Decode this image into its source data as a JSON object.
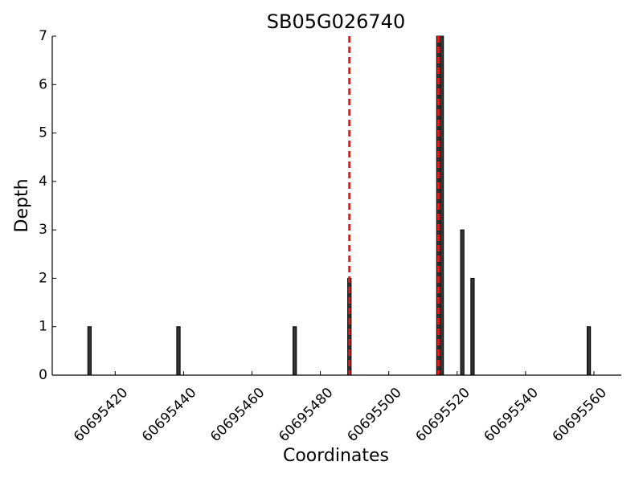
{
  "chart_data": {
    "type": "bar",
    "title": "SB05G026740",
    "x_label": "Coordinates",
    "y_label": "Depth",
    "x": [
      60695412,
      60695438,
      60695472,
      60695488,
      60695514,
      60695515,
      60695521,
      60695524,
      60695558
    ],
    "values": [
      1,
      1,
      1,
      2,
      7,
      7,
      3,
      2,
      1
    ],
    "bar_width": 1,
    "color": "#333333",
    "vlines": [
      60695488.5,
      60695514.5
    ],
    "vline_color": "#e8191c",
    "xlim": [
      60695401.6,
      60695568
    ],
    "xticks": [
      60695420,
      60695440,
      60695460,
      60695480,
      60695500,
      60695520,
      60695540,
      60695560
    ],
    "ylim": [
      0,
      7
    ],
    "yticks": [
      0,
      1,
      2,
      3,
      4,
      5,
      6,
      7
    ]
  }
}
